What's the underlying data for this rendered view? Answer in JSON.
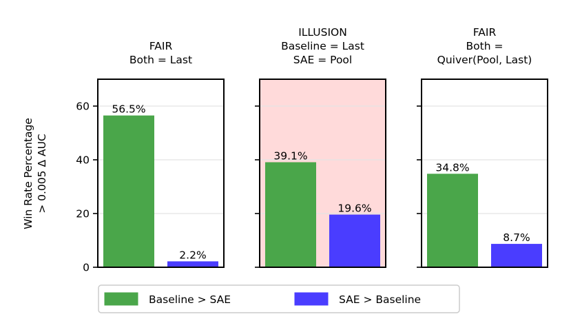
{
  "chart_data": [
    {
      "type": "bar",
      "title_lines": [
        "FAIR",
        "Both = Last"
      ],
      "categories": [
        "Baseline > SAE",
        "SAE > Baseline"
      ],
      "values": [
        56.5,
        2.2
      ],
      "value_labels": [
        "56.5%",
        "2.2%"
      ],
      "ylim": [
        0,
        70
      ],
      "highlight": false
    },
    {
      "type": "bar",
      "title_lines": [
        "ILLUSION",
        "Baseline = Last",
        "SAE = Pool"
      ],
      "categories": [
        "Baseline > SAE",
        "SAE > Baseline"
      ],
      "values": [
        39.1,
        19.6
      ],
      "value_labels": [
        "39.1%",
        "19.6%"
      ],
      "ylim": [
        0,
        70
      ],
      "highlight": true
    },
    {
      "type": "bar",
      "title_lines": [
        "FAIR",
        "Both =",
        "Quiver(Pool, Last)"
      ],
      "categories": [
        "Baseline > SAE",
        "SAE > Baseline"
      ],
      "values": [
        34.8,
        8.7
      ],
      "value_labels": [
        "34.8%",
        "8.7%"
      ],
      "ylim": [
        0,
        70
      ],
      "highlight": false
    }
  ],
  "ylabel_lines": [
    "Win Rate Percentage",
    "> 0.005 Δ AUC"
  ],
  "yticks": [
    0,
    20,
    40,
    60
  ],
  "grid": "horizontal",
  "legend": {
    "placement": "bottom",
    "entries": [
      {
        "label": "Baseline > SAE",
        "color": "#4aa64a"
      },
      {
        "label": "SAE > Baseline",
        "color": "#4a3dff"
      }
    ]
  },
  "colors": {
    "highlight_background": "#ffdada",
    "grid": "#e3e3e3"
  }
}
